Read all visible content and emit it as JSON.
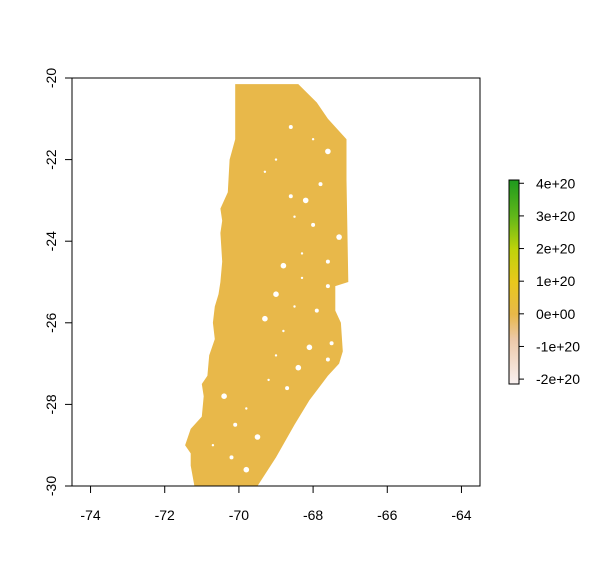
{
  "map": {
    "type": "raster",
    "xlim": [
      -74.5,
      -63.5
    ],
    "ylim": [
      -30,
      -20
    ],
    "x_ticks": [
      "-74",
      "-72",
      "-70",
      "-68",
      "-66",
      "-64"
    ],
    "y_ticks": [
      "-20",
      "-22",
      "-24",
      "-26",
      "-28",
      "-30"
    ],
    "fill_color": "#E8B84A",
    "region_outline": [
      [
        -70.1,
        -20.15
      ],
      [
        -68.4,
        -20.15
      ],
      [
        -67.9,
        -20.6
      ],
      [
        -67.6,
        -21.0
      ],
      [
        -67.1,
        -21.5
      ],
      [
        -67.1,
        -22.5
      ],
      [
        -67.05,
        -25.0
      ],
      [
        -67.4,
        -25.1
      ],
      [
        -67.4,
        -25.7
      ],
      [
        -67.25,
        -26.0
      ],
      [
        -67.2,
        -26.7
      ],
      [
        -67.3,
        -27.0
      ],
      [
        -67.6,
        -27.3
      ],
      [
        -68.1,
        -27.9
      ],
      [
        -68.5,
        -28.5
      ],
      [
        -69.0,
        -29.3
      ],
      [
        -69.5,
        -30.0
      ],
      [
        -71.2,
        -30.0
      ],
      [
        -71.3,
        -29.5
      ],
      [
        -71.3,
        -29.2
      ],
      [
        -71.45,
        -29.0
      ],
      [
        -71.3,
        -28.6
      ],
      [
        -71.0,
        -28.3
      ],
      [
        -70.95,
        -27.8
      ],
      [
        -71.0,
        -27.5
      ],
      [
        -70.85,
        -27.3
      ],
      [
        -70.8,
        -26.8
      ],
      [
        -70.65,
        -26.4
      ],
      [
        -70.7,
        -26.0
      ],
      [
        -70.65,
        -25.6
      ],
      [
        -70.55,
        -25.3
      ],
      [
        -70.5,
        -25.0
      ],
      [
        -70.45,
        -24.5
      ],
      [
        -70.5,
        -23.8
      ],
      [
        -70.45,
        -23.5
      ],
      [
        -70.5,
        -23.2
      ],
      [
        -70.3,
        -22.8
      ],
      [
        -70.25,
        -22.0
      ],
      [
        -70.1,
        -21.5
      ],
      [
        -70.1,
        -20.15
      ]
    ],
    "holes": [
      [
        -69.3,
        -22.3
      ],
      [
        -68.6,
        -22.9
      ],
      [
        -68.2,
        -23.0
      ],
      [
        -68.5,
        -23.4
      ],
      [
        -68.0,
        -23.6
      ],
      [
        -67.3,
        -23.9
      ],
      [
        -68.3,
        -24.3
      ],
      [
        -67.6,
        -24.5
      ],
      [
        -68.8,
        -24.6
      ],
      [
        -68.3,
        -24.9
      ],
      [
        -67.6,
        -25.1
      ],
      [
        -69.0,
        -25.3
      ],
      [
        -68.5,
        -25.6
      ],
      [
        -67.9,
        -25.7
      ],
      [
        -69.3,
        -25.9
      ],
      [
        -68.8,
        -26.2
      ],
      [
        -67.5,
        -26.5
      ],
      [
        -68.1,
        -26.6
      ],
      [
        -69.0,
        -26.8
      ],
      [
        -67.6,
        -26.9
      ],
      [
        -68.4,
        -27.1
      ],
      [
        -69.2,
        -27.4
      ],
      [
        -68.7,
        -27.6
      ],
      [
        -70.4,
        -27.8
      ],
      [
        -69.8,
        -28.1
      ],
      [
        -70.1,
        -28.5
      ],
      [
        -69.5,
        -28.8
      ],
      [
        -70.7,
        -29.0
      ],
      [
        -70.2,
        -29.3
      ],
      [
        -69.8,
        -29.6
      ],
      [
        -68.0,
        -21.5
      ],
      [
        -68.6,
        -21.2
      ],
      [
        -67.6,
        -21.8
      ],
      [
        -69.0,
        -22.0
      ],
      [
        -67.8,
        -22.6
      ]
    ]
  },
  "legend": {
    "labels": [
      "4e+20",
      "3e+20",
      "2e+20",
      "1e+20",
      "0e+00",
      "-1e+20",
      "-2e+20"
    ],
    "values": [
      4e+20,
      3e+20,
      2e+20,
      1e+20,
      0,
      -1e+20,
      -2e+20
    ],
    "range": [
      -2.15e+20,
      4.1e+20
    ],
    "colors": [
      "#1E9A1E",
      "#62B81A",
      "#BFD20A",
      "#E8C81C",
      "#E8B84A",
      "#ECC8A8",
      "#F8F0F0"
    ]
  }
}
